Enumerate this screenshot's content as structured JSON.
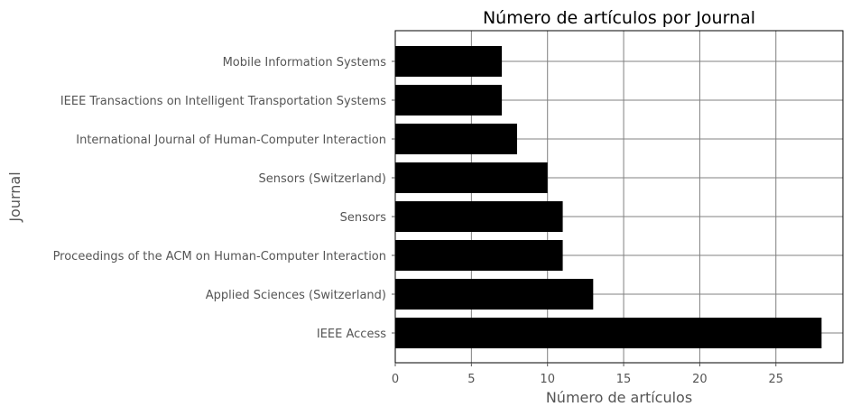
{
  "chart_data": {
    "type": "bar",
    "orientation": "horizontal",
    "title": "Número de artículos por Journal",
    "xlabel": "Número de artículos",
    "ylabel": "Journal",
    "categories": [
      "IEEE Access",
      "Applied Sciences (Switzerland)",
      "Proceedings of the ACM on Human-Computer Interaction",
      "Sensors",
      "Sensors (Switzerland)",
      "International Journal of Human-Computer Interaction",
      "IEEE Transactions on Intelligent Transportation Systems",
      "Mobile Information Systems"
    ],
    "values": [
      28,
      13,
      11,
      11,
      10,
      8,
      7,
      7
    ],
    "xticks": [
      0,
      5,
      10,
      15,
      20,
      25
    ],
    "xlim": [
      0,
      29.4
    ],
    "grid": true,
    "legend": "none",
    "colors": {
      "bar": "#000000",
      "grid": "#808080",
      "text": "#555555",
      "title": "#000000"
    }
  }
}
